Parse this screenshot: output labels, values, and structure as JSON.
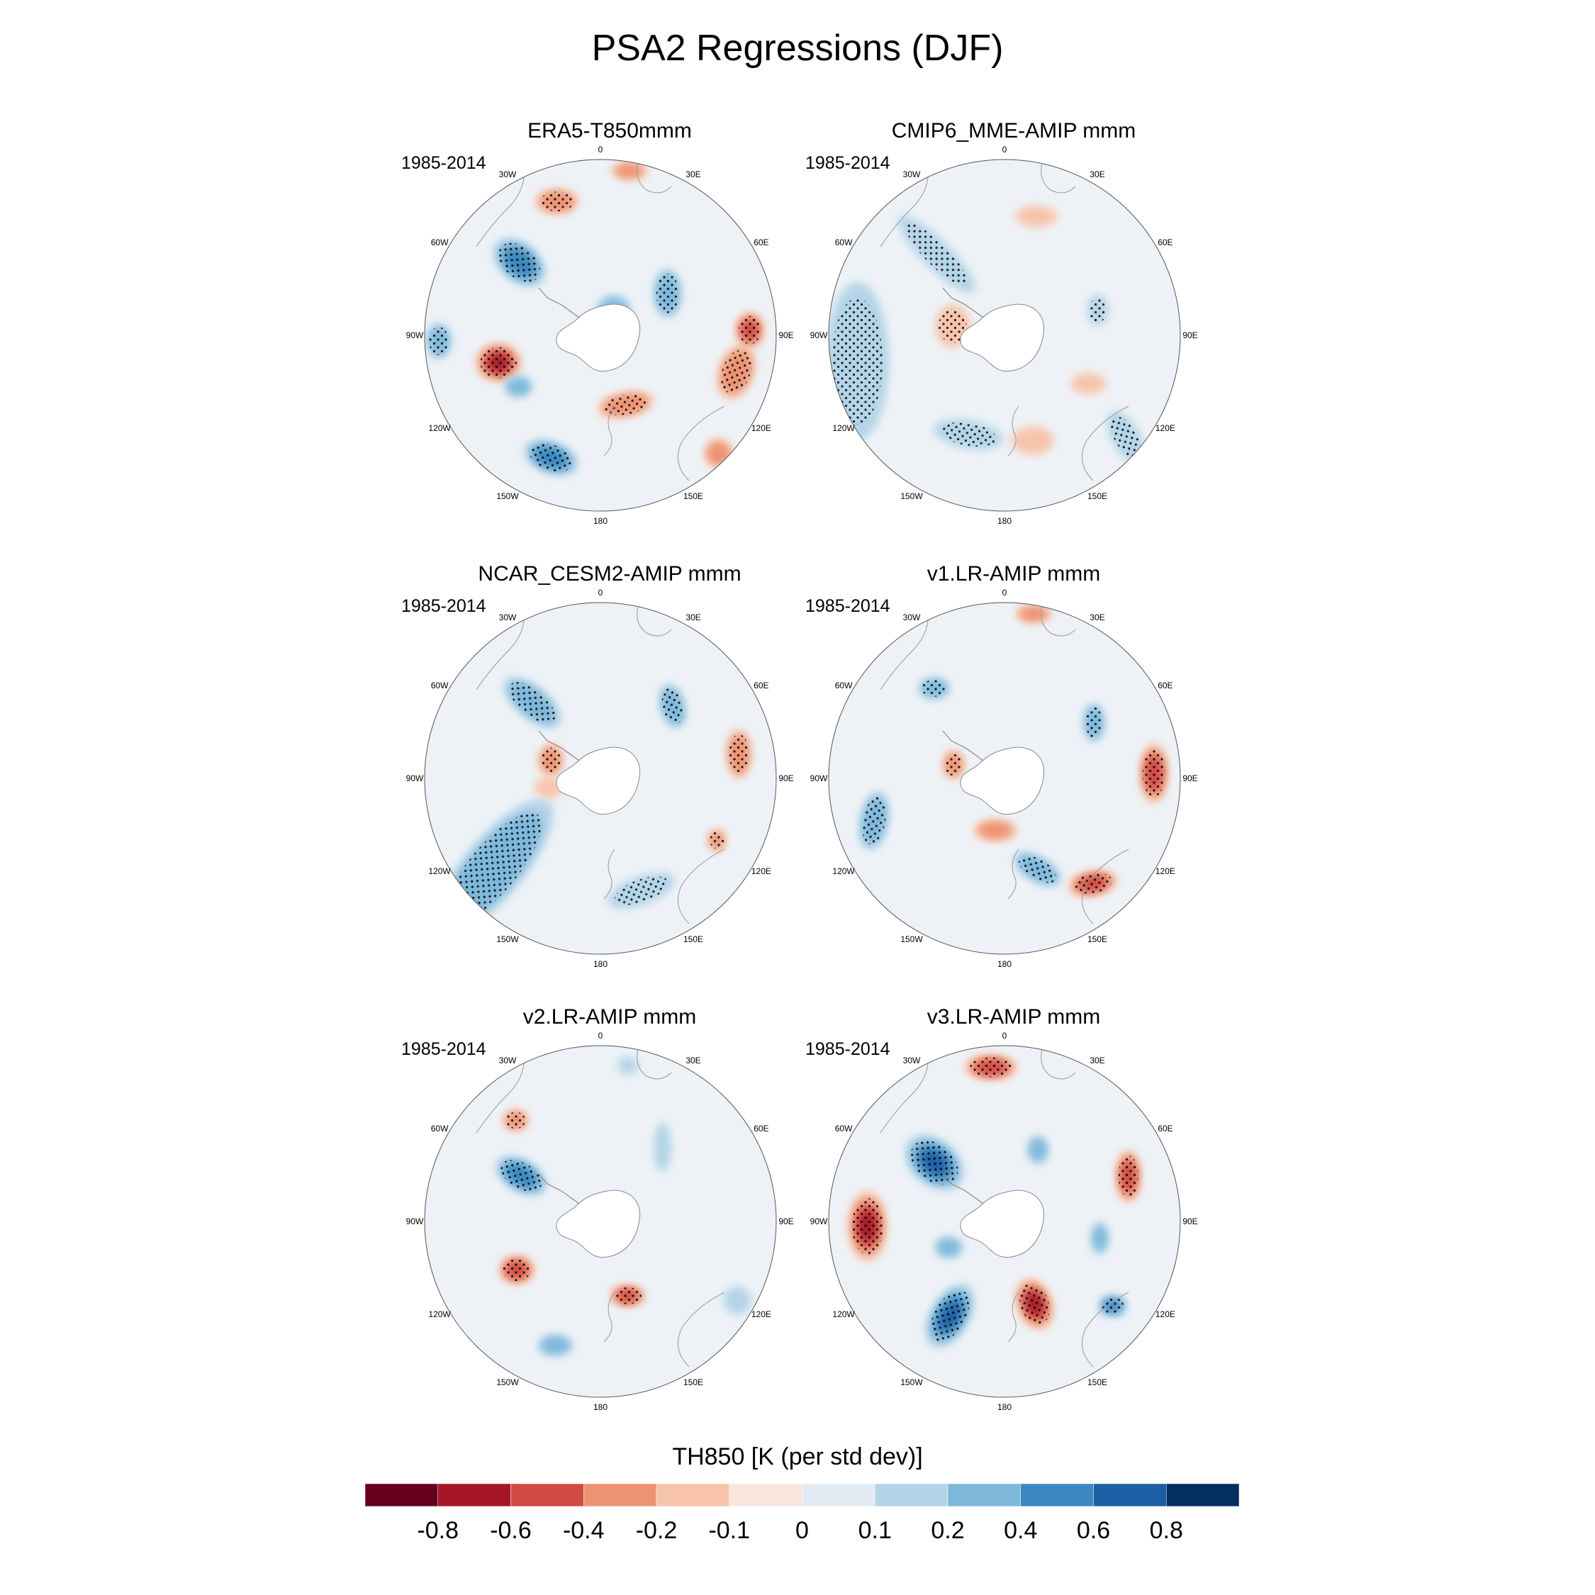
{
  "title": "PSA2 Regressions (DJF)",
  "longitude_labels": [
    "0",
    "30E",
    "60E",
    "90E",
    "120E",
    "150E",
    "180",
    "150W",
    "120W",
    "90W",
    "60W",
    "30W"
  ],
  "panels": [
    {
      "title": "ERA5-T850mmm",
      "period": "1985-2014",
      "anomalies": [
        {
          "lon": -48,
          "colat": 0.62,
          "value": 0.55,
          "rx": 0.17,
          "ry": 0.11,
          "rot": 40,
          "stipple": true
        },
        {
          "lon": -105,
          "colat": 0.6,
          "value": -0.7,
          "rx": 0.13,
          "ry": 0.11,
          "rot": 0,
          "stipple": true
        },
        {
          "lon": -158,
          "colat": 0.75,
          "value": 0.6,
          "rx": 0.16,
          "ry": 0.09,
          "rot": 20,
          "stipple": true
        },
        {
          "lon": -122,
          "colat": 0.55,
          "value": 0.3,
          "rx": 0.08,
          "ry": 0.06,
          "rot": 0,
          "stipple": false
        },
        {
          "lon": -18,
          "colat": 0.8,
          "value": -0.4,
          "rx": 0.12,
          "ry": 0.07,
          "rot": 0,
          "stipple": true
        },
        {
          "lon": 10,
          "colat": 0.95,
          "value": -0.3,
          "rx": 0.1,
          "ry": 0.05,
          "rot": 0,
          "stipple": false
        },
        {
          "lon": 58,
          "colat": 0.45,
          "value": 0.4,
          "rx": 0.08,
          "ry": 0.14,
          "rot": 0,
          "stipple": true
        },
        {
          "lon": 105,
          "colat": 0.8,
          "value": -0.4,
          "rx": 0.1,
          "ry": 0.16,
          "rot": 20,
          "stipple": true
        },
        {
          "lon": 160,
          "colat": 0.42,
          "value": -0.4,
          "rx": 0.16,
          "ry": 0.07,
          "rot": -10,
          "stipple": true
        },
        {
          "lon": -92,
          "colat": 0.92,
          "value": 0.3,
          "rx": 0.07,
          "ry": 0.1,
          "rot": 0,
          "stipple": true
        },
        {
          "lon": 30,
          "colat": 0.15,
          "value": 0.35,
          "rx": 0.1,
          "ry": 0.1,
          "rot": 0,
          "stipple": false
        },
        {
          "lon": 135,
          "colat": 0.95,
          "value": -0.3,
          "rx": 0.08,
          "ry": 0.08,
          "rot": 0,
          "stipple": false
        },
        {
          "lon": 88,
          "colat": 0.85,
          "value": -0.6,
          "rx": 0.08,
          "ry": 0.1,
          "rot": 0,
          "stipple": true
        }
      ]
    },
    {
      "title": "CMIP6_MME-AMIP  mmm",
      "period": "1985-2014",
      "anomalies": [
        {
          "lon": -100,
          "colat": 0.85,
          "value": 0.2,
          "rx": 0.18,
          "ry": 0.45,
          "rot": 0,
          "stipple": true
        },
        {
          "lon": -40,
          "colat": 0.6,
          "value": 0.2,
          "rx": 0.3,
          "ry": 0.08,
          "rot": 45,
          "stipple": true
        },
        {
          "lon": -160,
          "colat": 0.6,
          "value": 0.2,
          "rx": 0.2,
          "ry": 0.08,
          "rot": 10,
          "stipple": true
        },
        {
          "lon": -80,
          "colat": 0.3,
          "value": -0.2,
          "rx": 0.1,
          "ry": 0.12,
          "rot": 0,
          "stipple": true
        },
        {
          "lon": 130,
          "colat": 0.9,
          "value": 0.2,
          "rx": 0.08,
          "ry": 0.16,
          "rot": -30,
          "stipple": true
        },
        {
          "lon": 75,
          "colat": 0.55,
          "value": 0.2,
          "rx": 0.06,
          "ry": 0.09,
          "rot": 0,
          "stipple": true
        },
        {
          "lon": 165,
          "colat": 0.62,
          "value": -0.1,
          "rx": 0.12,
          "ry": 0.08,
          "rot": 0,
          "stipple": false
        },
        {
          "lon": 15,
          "colat": 0.7,
          "value": -0.1,
          "rx": 0.12,
          "ry": 0.06,
          "rot": 0,
          "stipple": false
        },
        {
          "lon": 120,
          "colat": 0.55,
          "value": -0.1,
          "rx": 0.1,
          "ry": 0.06,
          "rot": 0,
          "stipple": false
        }
      ]
    },
    {
      "title": "NCAR_CESM2-AMIP  mmm",
      "period": "1985-2014",
      "anomalies": [
        {
          "lon": -130,
          "colat": 0.8,
          "value": 0.3,
          "rx": 0.17,
          "ry": 0.5,
          "rot": 40,
          "stipple": true
        },
        {
          "lon": -42,
          "colat": 0.58,
          "value": 0.3,
          "rx": 0.2,
          "ry": 0.09,
          "rot": 40,
          "stipple": true
        },
        {
          "lon": 160,
          "colat": 0.68,
          "value": 0.2,
          "rx": 0.2,
          "ry": 0.08,
          "rot": -20,
          "stipple": true
        },
        {
          "lon": 45,
          "colat": 0.58,
          "value": 0.35,
          "rx": 0.07,
          "ry": 0.13,
          "rot": -15,
          "stipple": true
        },
        {
          "lon": 80,
          "colat": 0.8,
          "value": -0.4,
          "rx": 0.07,
          "ry": 0.14,
          "rot": 0,
          "stipple": true
        },
        {
          "lon": -70,
          "colat": 0.3,
          "value": -0.4,
          "rx": 0.07,
          "ry": 0.09,
          "rot": 0,
          "stipple": true
        },
        {
          "lon": 118,
          "colat": 0.75,
          "value": -0.35,
          "rx": 0.05,
          "ry": 0.06,
          "rot": 0,
          "stipple": true
        },
        {
          "lon": -100,
          "colat": 0.3,
          "value": -0.1,
          "rx": 0.08,
          "ry": 0.06,
          "rot": 0,
          "stipple": false
        }
      ]
    },
    {
      "title": "v1.LR-AMIP  mmm",
      "period": "1985-2014",
      "anomalies": [
        {
          "lon": -108,
          "colat": 0.78,
          "value": 0.35,
          "rx": 0.08,
          "ry": 0.17,
          "rot": 10,
          "stipple": true
        },
        {
          "lon": 160,
          "colat": 0.55,
          "value": 0.3,
          "rx": 0.15,
          "ry": 0.07,
          "rot": 30,
          "stipple": true
        },
        {
          "lon": -38,
          "colat": 0.65,
          "value": 0.3,
          "rx": 0.09,
          "ry": 0.06,
          "rot": 0,
          "stipple": true
        },
        {
          "lon": 58,
          "colat": 0.6,
          "value": 0.35,
          "rx": 0.06,
          "ry": 0.11,
          "rot": 0,
          "stipple": true
        },
        {
          "lon": 88,
          "colat": 0.85,
          "value": -0.5,
          "rx": 0.08,
          "ry": 0.17,
          "rot": 0,
          "stipple": true
        },
        {
          "lon": 140,
          "colat": 0.78,
          "value": -0.55,
          "rx": 0.14,
          "ry": 0.07,
          "rot": -10,
          "stipple": true
        },
        {
          "lon": -75,
          "colat": 0.3,
          "value": -0.4,
          "rx": 0.06,
          "ry": 0.08,
          "rot": 0,
          "stipple": true
        },
        {
          "lon": -170,
          "colat": 0.3,
          "value": -0.35,
          "rx": 0.12,
          "ry": 0.06,
          "rot": 0,
          "stipple": false
        },
        {
          "lon": 10,
          "colat": 0.95,
          "value": -0.3,
          "rx": 0.1,
          "ry": 0.05,
          "rot": 0,
          "stipple": false
        }
      ]
    },
    {
      "title": "v2.LR-AMIP  mmm",
      "period": "1985-2014",
      "anomalies": [
        {
          "lon": -60,
          "colat": 0.52,
          "value": 0.45,
          "rx": 0.16,
          "ry": 0.09,
          "rot": 30,
          "stipple": true
        },
        {
          "lon": -120,
          "colat": 0.55,
          "value": -0.5,
          "rx": 0.1,
          "ry": 0.08,
          "rot": 0,
          "stipple": true
        },
        {
          "lon": 160,
          "colat": 0.45,
          "value": -0.45,
          "rx": 0.1,
          "ry": 0.06,
          "rot": 0,
          "stipple": true
        },
        {
          "lon": -40,
          "colat": 0.75,
          "value": -0.35,
          "rx": 0.07,
          "ry": 0.06,
          "rot": 0,
          "stipple": true
        },
        {
          "lon": -160,
          "colat": 0.75,
          "value": 0.25,
          "rx": 0.1,
          "ry": 0.06,
          "rot": 0,
          "stipple": false
        },
        {
          "lon": 40,
          "colat": 0.55,
          "value": 0.15,
          "rx": 0.05,
          "ry": 0.14,
          "rot": 0,
          "stipple": false
        },
        {
          "lon": 120,
          "colat": 0.9,
          "value": 0.15,
          "rx": 0.08,
          "ry": 0.08,
          "rot": 0,
          "stipple": false
        },
        {
          "lon": 10,
          "colat": 0.9,
          "value": 0.15,
          "rx": 0.06,
          "ry": 0.05,
          "rot": 0,
          "stipple": false
        }
      ]
    },
    {
      "title": "v3.LR-AMIP  mmm",
      "period": "1985-2014",
      "anomalies": [
        {
          "lon": -50,
          "colat": 0.52,
          "value": 0.8,
          "rx": 0.19,
          "ry": 0.13,
          "rot": 40,
          "stipple": true
        },
        {
          "lon": -92,
          "colat": 0.78,
          "value": -0.75,
          "rx": 0.11,
          "ry": 0.2,
          "rot": 0,
          "stipple": true
        },
        {
          "lon": -150,
          "colat": 0.62,
          "value": 0.7,
          "rx": 0.11,
          "ry": 0.2,
          "rot": 30,
          "stipple": true
        },
        {
          "lon": 160,
          "colat": 0.5,
          "value": -0.65,
          "rx": 0.1,
          "ry": 0.15,
          "rot": -20,
          "stipple": true
        },
        {
          "lon": -5,
          "colat": 0.88,
          "value": -0.6,
          "rx": 0.15,
          "ry": 0.07,
          "rot": 0,
          "stipple": true
        },
        {
          "lon": 70,
          "colat": 0.75,
          "value": -0.6,
          "rx": 0.07,
          "ry": 0.15,
          "rot": 0,
          "stipple": true
        },
        {
          "lon": 128,
          "colat": 0.78,
          "value": 0.55,
          "rx": 0.08,
          "ry": 0.06,
          "rot": 0,
          "stipple": true
        },
        {
          "lon": -115,
          "colat": 0.35,
          "value": 0.3,
          "rx": 0.08,
          "ry": 0.06,
          "rot": 0,
          "stipple": false
        },
        {
          "lon": 100,
          "colat": 0.55,
          "value": 0.25,
          "rx": 0.05,
          "ry": 0.09,
          "rot": 0,
          "stipple": false
        },
        {
          "lon": 25,
          "colat": 0.45,
          "value": 0.25,
          "rx": 0.06,
          "ry": 0.08,
          "rot": 0,
          "stipple": false
        }
      ]
    }
  ],
  "colorbar": {
    "title": "TH850 [K (per std dev)]",
    "tick_labels": [
      "-0.8",
      "-0.6",
      "-0.4",
      "-0.2",
      "-0.1",
      "0",
      "0.1",
      "0.2",
      "0.4",
      "0.6",
      "0.8"
    ],
    "colors": [
      "#67001f",
      "#a51528",
      "#d04a45",
      "#ed9272",
      "#f7c4aa",
      "#f8e6dd",
      "#e2ebf3",
      "#b4d4e8",
      "#7db8da",
      "#3b88c0",
      "#1c5ea4",
      "#052e61"
    ]
  }
}
